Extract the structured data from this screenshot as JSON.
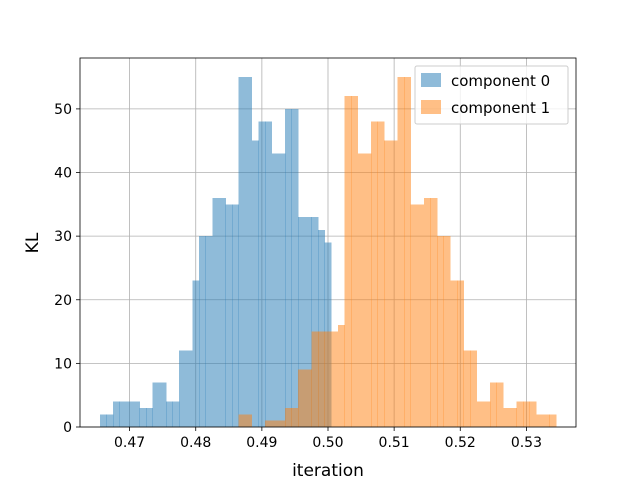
{
  "chart_data": {
    "type": "bar",
    "chart_kind": "histogram",
    "xlabel": "iteration",
    "ylabel": "KL",
    "xlim": [
      0.4625,
      0.5375
    ],
    "ylim": [
      0,
      58
    ],
    "x_ticks": [
      0.47,
      0.48,
      0.49,
      0.5,
      0.51,
      0.52,
      0.53
    ],
    "x_tick_labels": [
      "0.47",
      "0.48",
      "0.49",
      "0.50",
      "0.51",
      "0.52",
      "0.53"
    ],
    "y_ticks": [
      0,
      10,
      20,
      30,
      40,
      50
    ],
    "y_tick_labels": [
      "0",
      "10",
      "20",
      "30",
      "40",
      "50"
    ],
    "grid": true,
    "legend_position": "top-right",
    "series": [
      {
        "name": "component 0",
        "color": "#1f77b4",
        "alpha": 0.5,
        "bin_edges": [
          0.4655,
          0.4665,
          0.4675,
          0.4685,
          0.4695,
          0.4705,
          0.4715,
          0.4725,
          0.4735,
          0.4745,
          0.4755,
          0.4765,
          0.4775,
          0.4785,
          0.4795,
          0.4805,
          0.4815,
          0.4825,
          0.4835,
          0.4845,
          0.4855,
          0.4865,
          0.4875,
          0.4885,
          0.4895,
          0.4905,
          0.4915,
          0.4925,
          0.4935,
          0.4945,
          0.4955,
          0.4965,
          0.4975,
          0.4985,
          0.4995,
          0.5005
        ],
        "counts": [
          2,
          2,
          4,
          4,
          4,
          4,
          3,
          3,
          7,
          7,
          4,
          4,
          12,
          12,
          23,
          30,
          30,
          36,
          36,
          35,
          35,
          55,
          55,
          45,
          48,
          48,
          43,
          43,
          50,
          50,
          33,
          33,
          33,
          31,
          29
        ]
      },
      {
        "name": "component 1",
        "color": "#ff7f0e",
        "alpha": 0.5,
        "bin_edges": [
          0.4865,
          0.4875,
          0.4885,
          0.4895,
          0.4905,
          0.4915,
          0.4925,
          0.4935,
          0.4945,
          0.4955,
          0.4965,
          0.4975,
          0.4985,
          0.4995,
          0.5005,
          0.5015,
          0.5025,
          0.5035,
          0.5045,
          0.5055,
          0.5065,
          0.5075,
          0.5085,
          0.5095,
          0.5105,
          0.5115,
          0.5125,
          0.5135,
          0.5145,
          0.5155,
          0.5165,
          0.5175,
          0.5185,
          0.5195,
          0.5205,
          0.5215,
          0.5225,
          0.5235,
          0.5245,
          0.5255,
          0.5265,
          0.5275,
          0.5285,
          0.5295,
          0.5305,
          0.5315,
          0.5325,
          0.5335,
          0.5345
        ],
        "counts": [
          2,
          2,
          0,
          0,
          1,
          1,
          1,
          3,
          3,
          9,
          9,
          15,
          15,
          15,
          15,
          16,
          52,
          52,
          43,
          43,
          48,
          48,
          45,
          45,
          55,
          55,
          35,
          35,
          36,
          36,
          30,
          30,
          23,
          23,
          12,
          12,
          4,
          4,
          7,
          7,
          3,
          3,
          4,
          4,
          4,
          2,
          2,
          2
        ]
      }
    ]
  }
}
